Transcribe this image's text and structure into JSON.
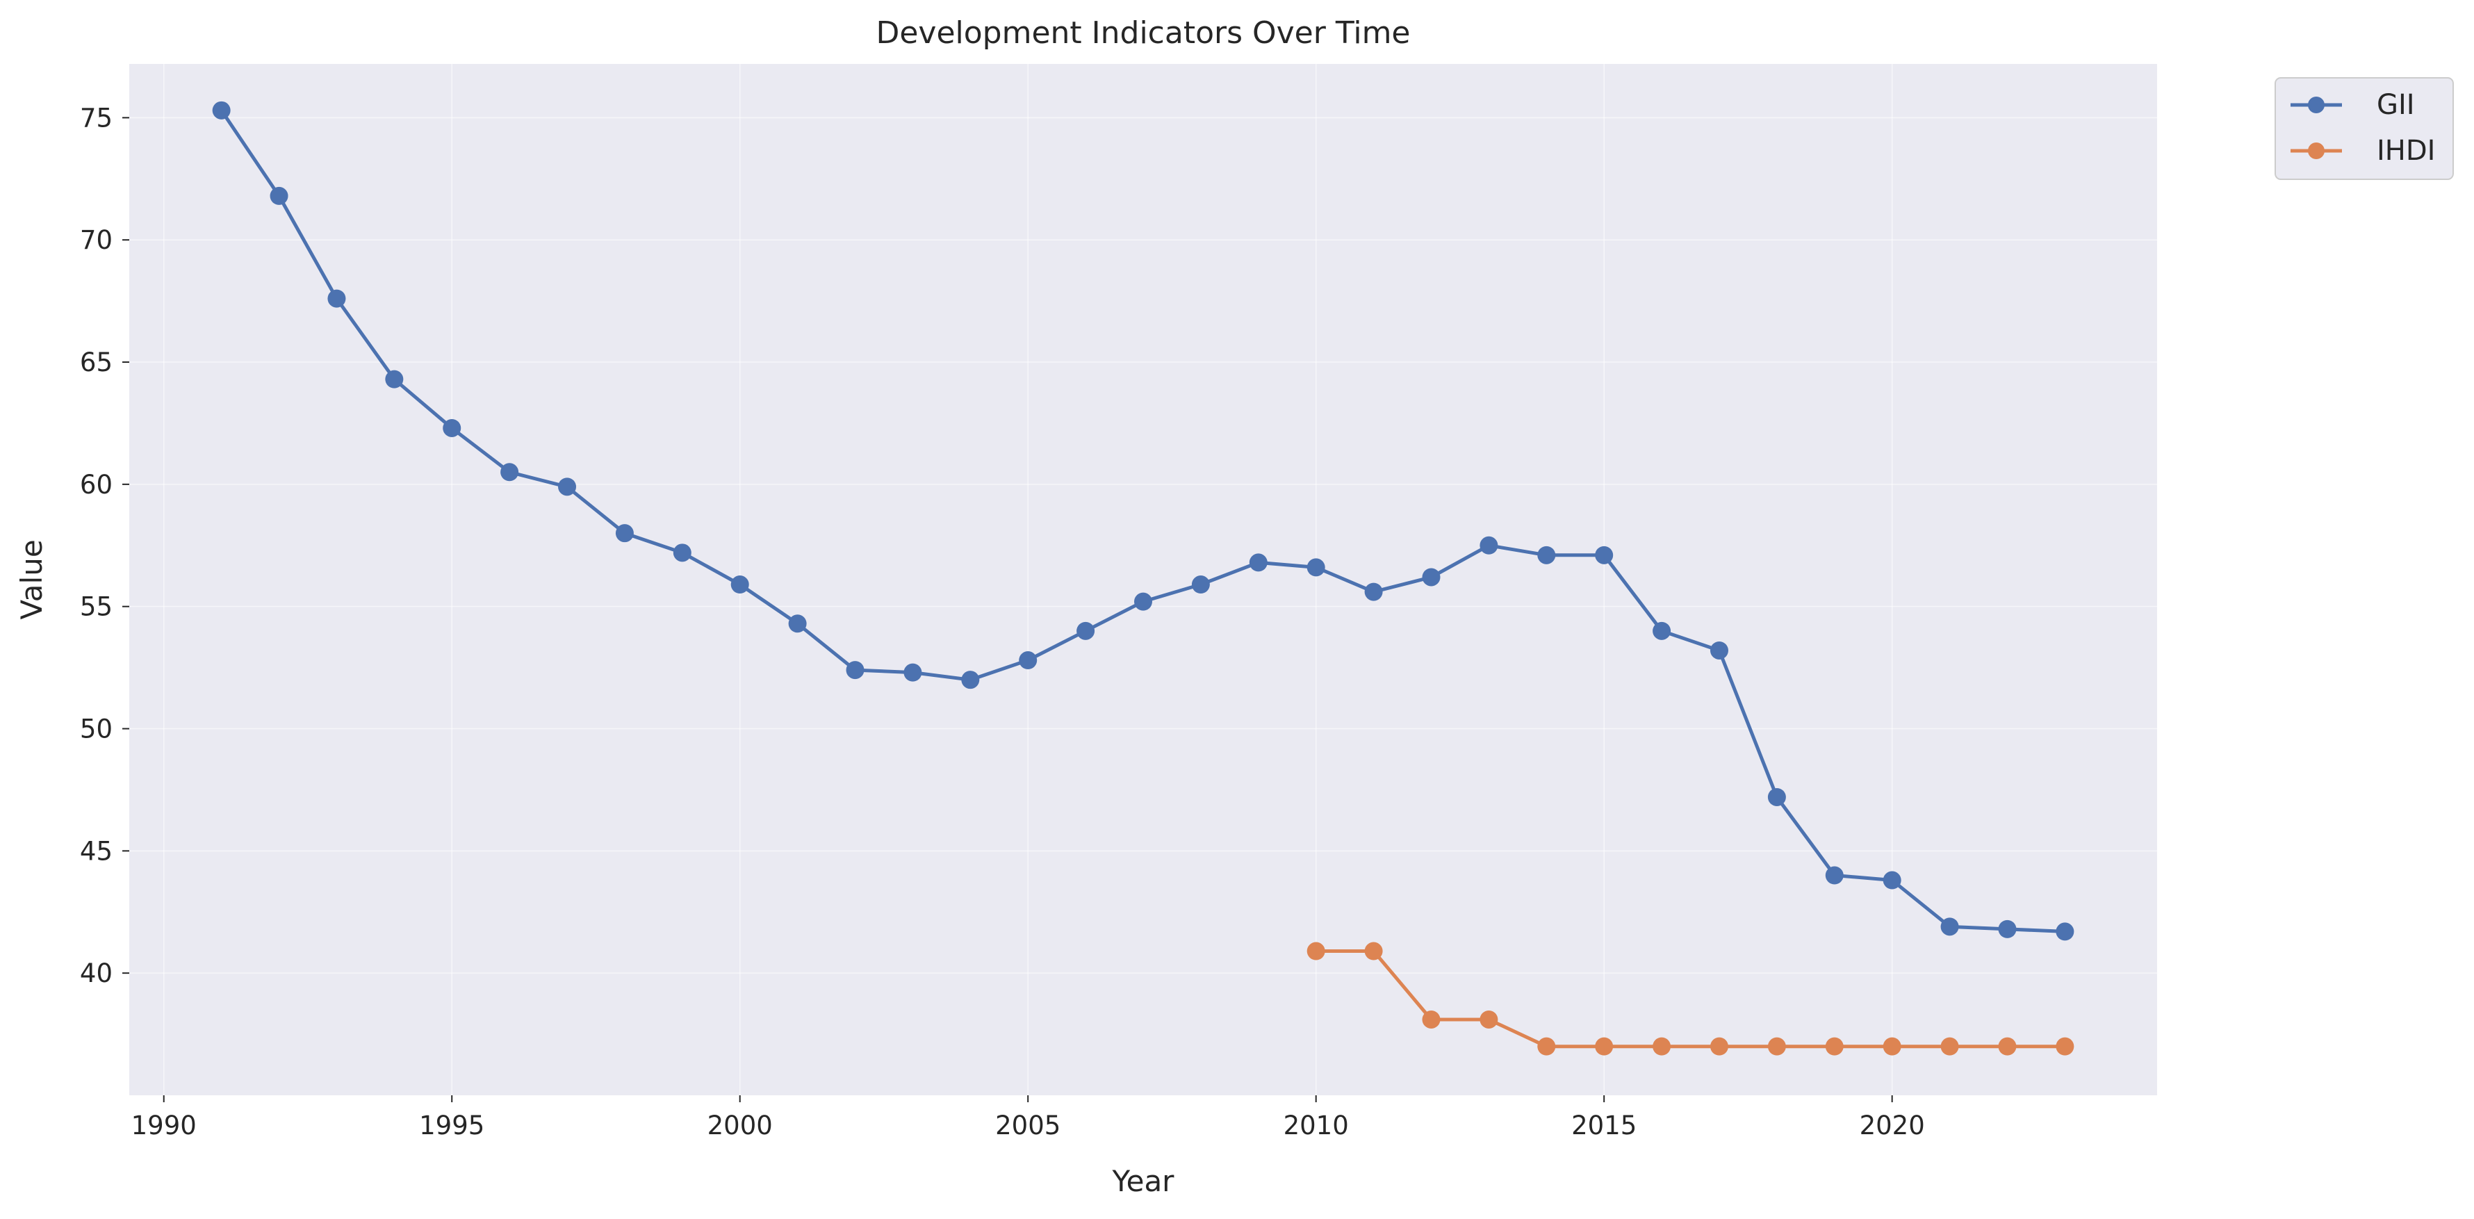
{
  "chart_data": {
    "type": "line",
    "title": "Development Indicators Over Time",
    "xlabel": "Year",
    "ylabel": "Value",
    "xlim": [
      1989.4,
      2024.6
    ],
    "ylim": [
      35.0,
      77.2
    ],
    "xticks": [
      1990,
      1995,
      2000,
      2005,
      2010,
      2015,
      2020
    ],
    "yticks": [
      40,
      45,
      50,
      55,
      60,
      65,
      70,
      75
    ],
    "grid": true,
    "legend_position": "upper-right-outside",
    "series": [
      {
        "name": "GII",
        "color": "#4c72b0",
        "x": [
          1991,
          1992,
          1993,
          1994,
          1995,
          1996,
          1997,
          1998,
          1999,
          2000,
          2001,
          2002,
          2003,
          2004,
          2005,
          2006,
          2007,
          2008,
          2009,
          2010,
          2011,
          2012,
          2013,
          2014,
          2015,
          2016,
          2017,
          2018,
          2019,
          2020,
          2021,
          2022,
          2023
        ],
        "y": [
          75.3,
          71.8,
          67.6,
          64.3,
          62.3,
          60.5,
          59.9,
          58.0,
          57.2,
          55.9,
          54.3,
          52.4,
          52.3,
          52.0,
          52.8,
          54.0,
          55.2,
          55.9,
          56.8,
          56.6,
          55.6,
          56.2,
          57.5,
          57.1,
          57.1,
          54.0,
          53.2,
          47.2,
          44.0,
          43.8,
          41.9,
          41.8,
          41.7
        ]
      },
      {
        "name": "IHDI",
        "color": "#dd8452",
        "x": [
          2010,
          2011,
          2012,
          2013,
          2014,
          2015,
          2016,
          2017,
          2018,
          2019,
          2020,
          2021,
          2022,
          2023
        ],
        "y": [
          40.9,
          40.9,
          38.1,
          38.1,
          37.0,
          37.0,
          37.0,
          37.0,
          37.0,
          37.0,
          37.0,
          37.0,
          37.0,
          37.0
        ]
      }
    ]
  }
}
